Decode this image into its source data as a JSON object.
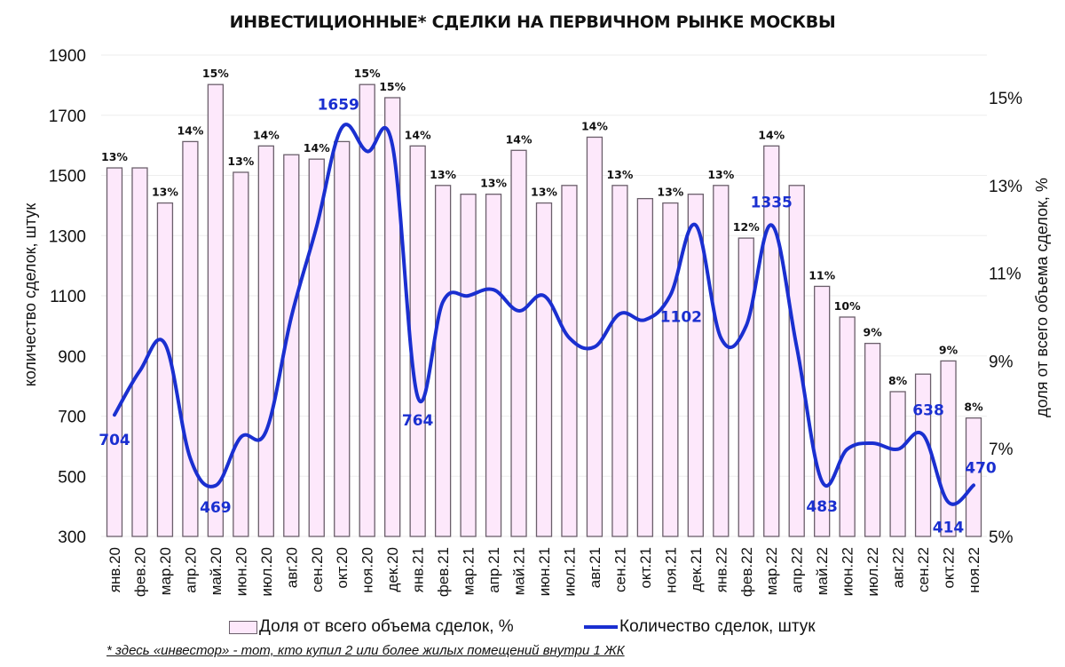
{
  "title": "ИНВЕСТИЦИОННЫЕ* СДЕЛКИ НА ПЕРВИЧНОМ РЫНКЕ МОСКВЫ",
  "legend": {
    "bars_label": "Доля от всего объема сделок, %",
    "line_label": "Количество сделок, штук"
  },
  "footnote": "* здесь «инвестор» - тот, кто купил 2 или более жилых помещений внутри 1 ЖК",
  "colors": {
    "bar_fill": "#fde8fb",
    "bar_stroke": "#6b5f6b",
    "line": "#1a2fd0",
    "line_label": "#1a2fd0",
    "grid": "#eeeeee"
  },
  "chart_data": {
    "type": "bar+line",
    "title": "ИНВЕСТИЦИОННЫЕ* СДЕЛКИ НА ПЕРВИЧНОМ РЫНКЕ МОСКВЫ",
    "xlabel": "",
    "ylabel_left": "количество сделок, штук",
    "ylabel_right": "доля от всего объема сделок, %",
    "ylim_left": [
      300,
      1900
    ],
    "yticks_left": [
      300,
      500,
      700,
      900,
      1100,
      1300,
      1500,
      1700,
      1900
    ],
    "ylim_right": [
      5,
      16
    ],
    "yticks_right": [
      "5%",
      "7%",
      "9%",
      "11%",
      "13%",
      "15%"
    ],
    "yticks_right_values": [
      5,
      7,
      9,
      11,
      13,
      15
    ],
    "grid": true,
    "legend_position": "bottom",
    "categories": [
      "янв.20",
      "фев.20",
      "мар.20",
      "апр.20",
      "май.20",
      "июн.20",
      "июл.20",
      "авг.20",
      "сен.20",
      "окт.20",
      "ноя.20",
      "дек.20",
      "янв.21",
      "фев.21",
      "мар.21",
      "апр.21",
      "май.21",
      "июн.21",
      "июл.21",
      "авг.21",
      "сен.21",
      "окт.21",
      "ноя.21",
      "дек.21",
      "янв.22",
      "фев.22",
      "мар.22",
      "апр.22",
      "май.22",
      "июн.22",
      "июл.22",
      "авг.22",
      "сен.22",
      "окт.22",
      "ноя.22"
    ],
    "series": [
      {
        "name": "Доля от всего объема сделок, %",
        "type": "bar",
        "axis": "right",
        "values": [
          13.4,
          13.4,
          12.6,
          14.0,
          15.3,
          13.3,
          13.9,
          13.7,
          13.6,
          14.0,
          15.3,
          15.0,
          13.9,
          13.0,
          12.8,
          12.8,
          13.8,
          12.6,
          13.0,
          14.1,
          13.0,
          12.7,
          12.6,
          12.8,
          13.0,
          11.8,
          13.9,
          13.0,
          10.7,
          10.0,
          9.4,
          8.3,
          8.7,
          9.0,
          7.7
        ],
        "data_labels": [
          "13%",
          "",
          "13%",
          "14%",
          "15%",
          "13%",
          "14%",
          "",
          "14%",
          "",
          "15%",
          "15%",
          "14%",
          "13%",
          "",
          "13%",
          "14%",
          "13%",
          "",
          "14%",
          "13%",
          "",
          "13%",
          "",
          "13%",
          "12%",
          "14%",
          "",
          "11%",
          "10%",
          "9%",
          "8%",
          "",
          "9%",
          "8%"
        ]
      },
      {
        "name": "Количество сделок, штук",
        "type": "line",
        "axis": "left",
        "values": [
          704,
          850,
          940,
          560,
          469,
          630,
          650,
          1030,
          1330,
          1659,
          1580,
          1600,
          764,
          1080,
          1100,
          1120,
          1050,
          1100,
          960,
          930,
          1040,
          1020,
          1102,
          1335,
          960,
          1000,
          1335,
          930,
          483,
          590,
          610,
          590,
          638,
          414,
          470
        ],
        "data_labels": [
          "704",
          "",
          "",
          "",
          "469",
          "",
          "",
          "",
          "",
          "1659",
          "",
          "",
          "764",
          "",
          "",
          "",
          "",
          "",
          "",
          "",
          "",
          "",
          "1102",
          "",
          "",
          "",
          "1335",
          "",
          "483",
          "",
          "",
          "",
          "638",
          "414",
          "470"
        ]
      }
    ]
  }
}
